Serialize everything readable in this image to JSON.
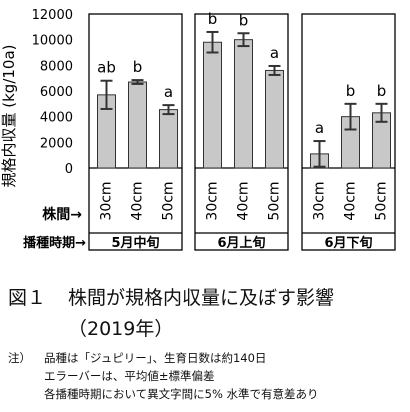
{
  "chart_data": {
    "type": "bar",
    "ylabel": "規格内収量 (kg/10a)",
    "ylim": [
      0,
      12000
    ],
    "yticks": [
      "0",
      "2000",
      "4000",
      "6000",
      "8000",
      "10000",
      "12000"
    ],
    "spacing_label": "株間→",
    "period_label": "播種時期→",
    "groups": [
      {
        "name": "5月中旬",
        "bars": [
          {
            "category": "30cm",
            "value": 5700,
            "error": 1100,
            "letter": "ab"
          },
          {
            "category": "40cm",
            "value": 6700,
            "error": 150,
            "letter": "b"
          },
          {
            "category": "50cm",
            "value": 4550,
            "error": 350,
            "letter": "a"
          }
        ]
      },
      {
        "name": "6月上旬",
        "bars": [
          {
            "category": "30cm",
            "value": 9800,
            "error": 800,
            "letter": "b"
          },
          {
            "category": "40cm",
            "value": 10000,
            "error": 500,
            "letter": "b"
          },
          {
            "category": "50cm",
            "value": 7600,
            "error": 350,
            "letter": "a"
          }
        ]
      },
      {
        "name": "6月下旬",
        "bars": [
          {
            "category": "30cm",
            "value": 1100,
            "error": 1000,
            "letter": "a"
          },
          {
            "category": "40cm",
            "value": 4000,
            "error": 1000,
            "letter": "b"
          },
          {
            "category": "50cm",
            "value": 4300,
            "error": 700,
            "letter": "b"
          }
        ]
      }
    ],
    "colors": {
      "bar_fill": "#c8c8c8",
      "bar_stroke": "#333333",
      "frame": "#000000"
    }
  },
  "caption": {
    "figure_number": "図１",
    "title": "株間が規格内収量に及ぼす影響",
    "year": "（2019年）"
  },
  "notes": {
    "label": "注）",
    "line1": "品種は「ジュピリー」、生育日数は約140日",
    "line2": "エラーバーは、平均値±標準偏差",
    "line3": "各播種時期において異文字間に5% 水準で有意差あり"
  }
}
